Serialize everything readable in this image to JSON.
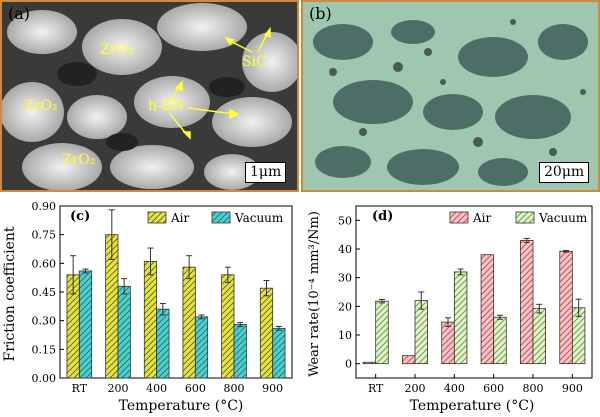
{
  "panel_a": {
    "letter": "(a)",
    "labels": {
      "zro2_1": "ZrO₂",
      "zro2_2": "ZrO₂",
      "zro2_3": "ZrO₂",
      "sic": "SiC",
      "hbn": "h-BN"
    },
    "scale": "1μm"
  },
  "panel_b": {
    "letter": "(b)",
    "scale": "20μm"
  },
  "colors": {
    "air_c": "#e6e632",
    "vacuum_c": "#42d4d4",
    "air_d": "#e87a82",
    "vacuum_d": "#a8d86a"
  },
  "chart_data": [
    {
      "type": "bar",
      "panel_label": "(c)",
      "categories": [
        "RT",
        "200",
        "400",
        "600",
        "800",
        "900"
      ],
      "series": [
        {
          "name": "Air",
          "values": [
            0.54,
            0.75,
            0.61,
            0.58,
            0.54,
            0.47
          ],
          "errors": [
            0.1,
            0.13,
            0.07,
            0.06,
            0.04,
            0.04
          ]
        },
        {
          "name": "Vacuum",
          "values": [
            0.56,
            0.48,
            0.36,
            0.32,
            0.28,
            0.26
          ],
          "errors": [
            0.01,
            0.04,
            0.03,
            0.01,
            0.01,
            0.01
          ]
        }
      ],
      "xlabel": "Temperature (°C)",
      "ylabel": "Friction coefficient",
      "ylim": [
        0,
        0.9
      ],
      "yticks": [
        "0.00",
        "0.15",
        "0.30",
        "0.45",
        "0.60",
        "0.75",
        "0.90"
      ],
      "legend": "top-right"
    },
    {
      "type": "bar",
      "panel_label": "(d)",
      "categories": [
        "RT",
        "200",
        "400",
        "600",
        "800",
        "900"
      ],
      "series": [
        {
          "name": "Air",
          "values": [
            0.5,
            2.8,
            14.5,
            38,
            43,
            39.2
          ],
          "errors": [
            0,
            0,
            1.5,
            0,
            0.7,
            0.3
          ]
        },
        {
          "name": "Vacuum",
          "values": [
            21.8,
            22,
            32,
            16.2,
            19.2,
            19.5
          ],
          "errors": [
            0.6,
            3,
            1,
            0.7,
            1.5,
            3
          ]
        }
      ],
      "xlabel": "Temperature (°C)",
      "ylabel": "Wear rate(10⁻⁴ mm³/Nm)",
      "ylim": [
        -5,
        55
      ],
      "yticks": [
        "0",
        "10",
        "20",
        "30",
        "40",
        "50"
      ],
      "legend": "top-right"
    }
  ]
}
